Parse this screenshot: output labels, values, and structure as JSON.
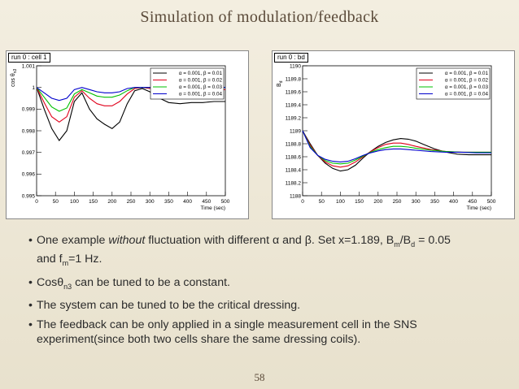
{
  "slide_title": "Simulation of modulation/feedback",
  "page_number": "58",
  "bullets": [
    {
      "pre": "One example ",
      "em": "without",
      "post": " fluctuation with different α and β. Set x=1.189, B",
      "sub1": "m",
      "mid": "/B",
      "sub2": "d",
      "post2": " = 0.05",
      "line2": "and f",
      "sub3": "m",
      "line2b": "=1 Hz."
    },
    {
      "text": "Cosθ",
      "sub": "n3",
      "tail": " can be tuned to be a constant."
    },
    {
      "text": "The system can be tuned to be the critical dressing."
    },
    {
      "text": "The feedback can be only applied in a single measurement cell in the SNS experiment(since both two cells share the same dressing coils)."
    }
  ],
  "chart_data": [
    {
      "type": "line",
      "panel_label": "run 0 : cell 1",
      "ylabel": "cos θ",
      "ylabel_sub": "n3",
      "xlabel": "Time (sec)",
      "xlim": [
        0,
        500
      ],
      "ylim": [
        0.995,
        1.001
      ],
      "xticks": [
        "0",
        "50",
        "100",
        "150",
        "200",
        "250",
        "300",
        "350",
        "400",
        "450",
        "500"
      ],
      "yticks": [
        "0.995",
        "0.996",
        "0.997",
        "0.998",
        "0.999",
        "1",
        "1.001"
      ],
      "legend_position": "top-right",
      "legend": [
        {
          "label": "α = 0.001, β = 0.01",
          "color": "#000000"
        },
        {
          "label": "α = 0.001, β = 0.02",
          "color": "#e0001b"
        },
        {
          "label": "α = 0.001, β = 0.03",
          "color": "#00c000"
        },
        {
          "label": "α = 0.001, β = 0.04",
          "color": "#0000cc"
        }
      ],
      "series": [
        {
          "color": "#000000",
          "x": [
            0,
            20,
            40,
            60,
            80,
            100,
            120,
            140,
            160,
            180,
            200,
            220,
            240,
            260,
            280,
            300,
            320,
            350,
            380,
            410,
            440,
            470,
            500
          ],
          "y": [
            1.0,
            0.999,
            0.9981,
            0.99755,
            0.998,
            0.99935,
            0.99975,
            0.999,
            0.99855,
            0.9983,
            0.9981,
            0.9984,
            0.99925,
            0.99985,
            0.99995,
            0.9998,
            0.99955,
            0.9993,
            0.99925,
            0.9993,
            0.9993,
            0.99935,
            0.99935
          ]
        },
        {
          "color": "#e0001b",
          "x": [
            0,
            20,
            40,
            60,
            80,
            100,
            120,
            140,
            160,
            180,
            200,
            220,
            240,
            260,
            280,
            300,
            350,
            400,
            450,
            500
          ],
          "y": [
            1.0,
            0.9993,
            0.99865,
            0.9984,
            0.99865,
            0.99955,
            0.99985,
            0.9995,
            0.99925,
            0.99915,
            0.99915,
            0.99935,
            0.9997,
            0.99995,
            1.0,
            0.99995,
            0.9999,
            0.9999,
            0.9999,
            0.9999
          ]
        },
        {
          "color": "#00c000",
          "x": [
            0,
            20,
            40,
            60,
            80,
            100,
            120,
            140,
            160,
            180,
            200,
            220,
            240,
            260,
            280,
            300,
            350,
            400,
            450,
            500
          ],
          "y": [
            1.0,
            0.99955,
            0.9991,
            0.9989,
            0.99905,
            0.9997,
            0.9999,
            0.99975,
            0.9996,
            0.99955,
            0.99955,
            0.99965,
            0.99985,
            1.0,
            1.0,
            1.0,
            1.0,
            1.0,
            1.0,
            1.0
          ]
        },
        {
          "color": "#0000cc",
          "x": [
            0,
            20,
            40,
            60,
            80,
            100,
            120,
            140,
            160,
            180,
            200,
            220,
            240,
            260,
            280,
            300,
            350,
            400,
            450,
            500
          ],
          "y": [
            1.0,
            0.99975,
            0.9995,
            0.9994,
            0.9995,
            0.9999,
            1.0,
            0.9999,
            0.9998,
            0.99975,
            0.99975,
            0.9998,
            0.99995,
            1.0,
            1.0,
            1.0,
            1.0,
            1.0,
            1.0,
            1.0
          ]
        }
      ]
    },
    {
      "type": "line",
      "panel_label": "run 0 : bd",
      "ylabel": "B",
      "ylabel_sub": "d",
      "xlabel": "Time (sec)",
      "xlim": [
        0,
        500
      ],
      "ylim": [
        1188,
        1190
      ],
      "xticks": [
        "0",
        "50",
        "100",
        "150",
        "200",
        "250",
        "300",
        "350",
        "400",
        "450",
        "500"
      ],
      "yticks": [
        "1188",
        "1188.2",
        "1188.4",
        "1188.6",
        "1188.8",
        "1189",
        "1189.2",
        "1189.4",
        "1189.6",
        "1189.8",
        "1190"
      ],
      "legend_position": "top-right",
      "legend": [
        {
          "label": "α = 0.001, β = 0.01",
          "color": "#000000"
        },
        {
          "label": "α = 0.001, β = 0.02",
          "color": "#e0001b"
        },
        {
          "label": "α = 0.001, β = 0.03",
          "color": "#00c000"
        },
        {
          "label": "α = 0.001, β = 0.04",
          "color": "#0000cc"
        }
      ],
      "series": [
        {
          "color": "#000000",
          "x": [
            0,
            20,
            40,
            60,
            80,
            100,
            120,
            140,
            160,
            180,
            200,
            220,
            240,
            260,
            280,
            300,
            320,
            350,
            380,
            410,
            440,
            470,
            500
          ],
          "y": [
            1189.0,
            1188.8,
            1188.62,
            1188.5,
            1188.42,
            1188.38,
            1188.4,
            1188.47,
            1188.58,
            1188.68,
            1188.76,
            1188.82,
            1188.86,
            1188.88,
            1188.87,
            1188.84,
            1188.79,
            1188.72,
            1188.67,
            1188.64,
            1188.63,
            1188.63,
            1188.63
          ]
        },
        {
          "color": "#e0001b",
          "x": [
            0,
            20,
            40,
            60,
            80,
            100,
            120,
            140,
            160,
            180,
            200,
            220,
            240,
            260,
            280,
            300,
            340,
            380,
            420,
            460,
            500
          ],
          "y": [
            1189.0,
            1188.78,
            1188.62,
            1188.52,
            1188.46,
            1188.44,
            1188.46,
            1188.52,
            1188.6,
            1188.68,
            1188.74,
            1188.79,
            1188.81,
            1188.81,
            1188.79,
            1188.76,
            1188.71,
            1188.68,
            1188.67,
            1188.67,
            1188.67
          ]
        },
        {
          "color": "#00c000",
          "x": [
            0,
            20,
            40,
            60,
            80,
            100,
            120,
            140,
            160,
            180,
            200,
            220,
            240,
            260,
            280,
            300,
            340,
            380,
            420,
            460,
            500
          ],
          "y": [
            1189.0,
            1188.76,
            1188.62,
            1188.54,
            1188.5,
            1188.49,
            1188.5,
            1188.55,
            1188.61,
            1188.67,
            1188.71,
            1188.74,
            1188.76,
            1188.76,
            1188.75,
            1188.73,
            1188.7,
            1188.68,
            1188.67,
            1188.67,
            1188.67
          ]
        },
        {
          "color": "#0000cc",
          "x": [
            0,
            20,
            40,
            60,
            80,
            100,
            120,
            140,
            160,
            180,
            200,
            220,
            240,
            260,
            280,
            300,
            340,
            380,
            420,
            460,
            500
          ],
          "y": [
            1189.0,
            1188.74,
            1188.62,
            1188.56,
            1188.53,
            1188.52,
            1188.53,
            1188.57,
            1188.62,
            1188.66,
            1188.69,
            1188.71,
            1188.72,
            1188.72,
            1188.71,
            1188.7,
            1188.68,
            1188.67,
            1188.67,
            1188.66,
            1188.66
          ]
        }
      ]
    }
  ]
}
